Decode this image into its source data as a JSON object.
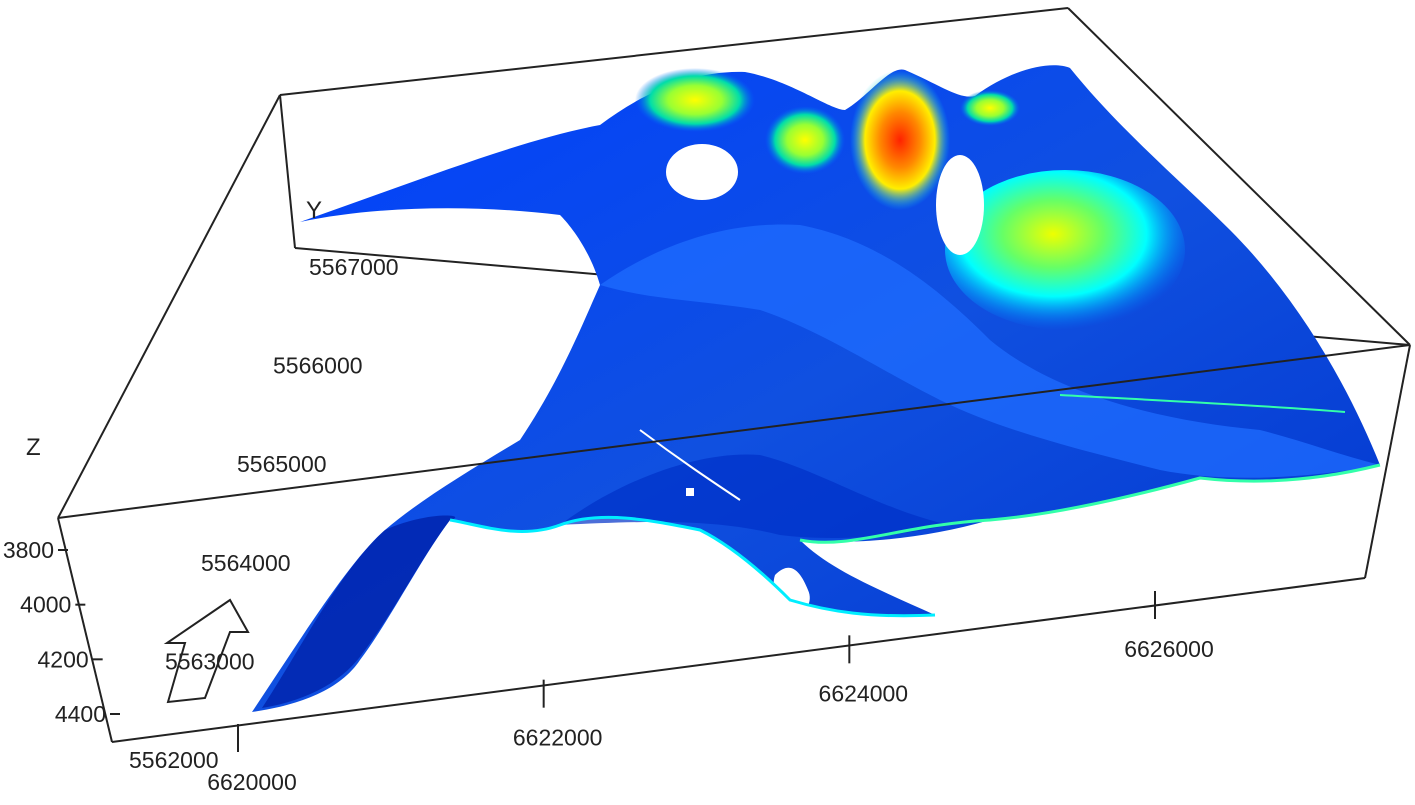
{
  "chart_data": {
    "type": "3d-surface",
    "axis_labels": {
      "z": "Z",
      "y": "Y"
    },
    "x_ticks": [
      6620000,
      6622000,
      6624000,
      6626000
    ],
    "y_ticks": [
      5562000,
      5563000,
      5564000,
      5565000,
      5566000,
      5567000
    ],
    "z_ticks": [
      3800,
      4000,
      4200,
      4400
    ],
    "x_range": [
      6620000,
      6628000
    ],
    "y_range": [
      5562000,
      5567000
    ],
    "z_range": [
      3800,
      4400
    ],
    "colormap": [
      "#0000ff",
      "#0066ff",
      "#00ccff",
      "#33ff99",
      "#ccff00",
      "#ffcc00",
      "#ff3300"
    ],
    "box_color": "#222222",
    "north_arrow": true
  }
}
